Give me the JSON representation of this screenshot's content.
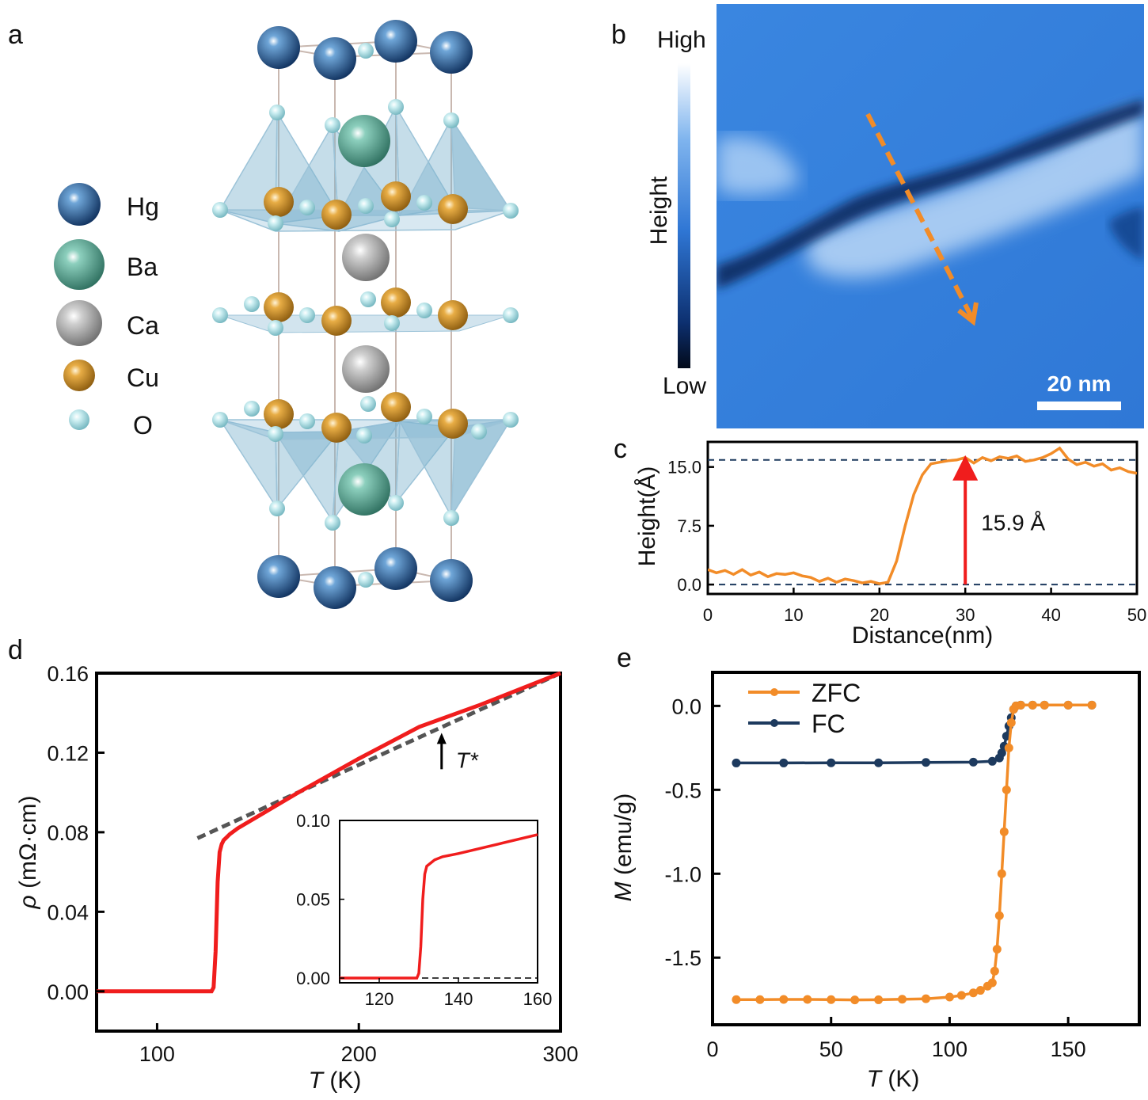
{
  "figure": {
    "panel_labels": [
      "a",
      "b",
      "c",
      "d",
      "e"
    ],
    "legend_a": {
      "items": [
        {
          "label": "Hg",
          "color": "#1f4e86"
        },
        {
          "label": "Ba",
          "color": "#4f9b86"
        },
        {
          "label": "Ca",
          "color": "#9a9a9a"
        },
        {
          "label": "Cu",
          "color": "#c88a1f"
        },
        {
          "label": "O",
          "color": "#a8d8de"
        }
      ]
    },
    "panel_b": {
      "colorbar_high": "High",
      "colorbar_low": "Low",
      "colorbar_title": "Height",
      "scalebar": "20 nm"
    },
    "colors": {
      "orange": "#f28c28",
      "red": "#f01d1d",
      "navy": "#1d3a5e",
      "dashed": "#1d3a5e"
    }
  },
  "chart_data": [
    {
      "id": "c",
      "type": "line",
      "title": "",
      "xlabel": "Distance(nm)",
      "ylabel": "Height(Å)",
      "xlim": [
        0,
        50
      ],
      "ylim": [
        -1.2,
        18.2
      ],
      "xticks": [
        "0",
        "10",
        "20",
        "30",
        "40",
        "50"
      ],
      "yticks": [
        "0.0",
        "7.5",
        "15.0"
      ],
      "x": [
        0,
        1,
        2,
        3,
        4,
        5,
        6,
        7,
        8,
        9,
        10,
        11,
        12,
        13,
        14,
        15,
        16,
        17,
        18,
        19,
        20,
        21,
        22,
        23,
        24,
        25,
        26,
        27,
        28,
        29,
        30,
        31,
        32,
        33,
        34,
        35,
        36,
        37,
        38,
        39,
        40,
        41,
        42,
        43,
        44,
        45,
        46,
        47,
        48,
        49,
        50
      ],
      "values": [
        1.9,
        1.5,
        1.8,
        1.3,
        1.9,
        1.2,
        1.6,
        1.0,
        1.4,
        1.3,
        1.5,
        1.1,
        0.9,
        0.4,
        0.8,
        0.3,
        0.7,
        0.5,
        0.2,
        0.4,
        0.1,
        0.3,
        3.0,
        7.5,
        11.5,
        14.0,
        15.4,
        15.6,
        15.8,
        15.9,
        16.2,
        15.5,
        16.2,
        15.8,
        16.3,
        16.1,
        16.4,
        15.7,
        15.9,
        16.2,
        16.7,
        17.4,
        16.0,
        15.3,
        15.6,
        15.1,
        15.4,
        14.6,
        14.9,
        14.4,
        14.2
      ],
      "reference_lines": [
        0,
        15.9
      ],
      "annotation": {
        "text": "15.9 Å",
        "x": 30,
        "from": 0,
        "to": 15.9
      }
    },
    {
      "id": "d",
      "type": "line",
      "title": "",
      "xlabel": "T (K)",
      "ylabel": "ρ (mΩ·cm)",
      "xlim": [
        70,
        300
      ],
      "ylim": [
        -0.02,
        0.16
      ],
      "xticks": [
        "100",
        "200",
        "300"
      ],
      "yticks": [
        "0.00",
        "0.04",
        "0.08",
        "0.12",
        "0.16"
      ],
      "x": [
        70,
        100,
        127,
        128,
        129,
        130,
        131,
        132,
        133,
        134,
        136,
        140,
        150,
        170,
        200,
        230,
        260,
        300
      ],
      "values": [
        0.0,
        0.0,
        0.0,
        0.002,
        0.02,
        0.055,
        0.07,
        0.074,
        0.076,
        0.077,
        0.079,
        0.082,
        0.088,
        0.1,
        0.117,
        0.133,
        0.144,
        0.16
      ],
      "fit_line": {
        "x": [
          120,
          300
        ],
        "values": [
          0.077,
          0.16
        ]
      },
      "annotation": {
        "text": "T*",
        "x": 243,
        "y": 0.13
      },
      "inset": {
        "xlim": [
          110,
          160
        ],
        "ylim": [
          -0.003,
          0.1
        ],
        "xticks": [
          "120",
          "140",
          "160"
        ],
        "yticks": [
          "0.00",
          "0.05",
          "0.10"
        ],
        "x": [
          110,
          125,
          129.5,
          130,
          130.5,
          131,
          131.5,
          132,
          133,
          134,
          136,
          140,
          150,
          160
        ],
        "values": [
          0.0,
          0.0,
          0.0,
          0.003,
          0.02,
          0.05,
          0.066,
          0.071,
          0.073,
          0.075,
          0.077,
          0.079,
          0.085,
          0.091
        ],
        "baseline": 0
      }
    },
    {
      "id": "e",
      "type": "line",
      "title": "",
      "xlabel": "T (K)",
      "ylabel": "M (emu/g)",
      "xlim": [
        0,
        180
      ],
      "ylim": [
        -1.9,
        0.2
      ],
      "xticks": [
        "0",
        "50",
        "100",
        "150"
      ],
      "yticks": [
        "0.0",
        "-0.5",
        "-1.0",
        "-1.5"
      ],
      "legend": [
        "ZFC",
        "FC"
      ],
      "series": [
        {
          "name": "ZFC",
          "x": [
            10,
            20,
            30,
            40,
            50,
            60,
            70,
            80,
            90,
            100,
            105,
            110,
            113,
            116,
            118,
            119,
            120,
            121,
            122,
            123,
            124,
            125,
            126,
            127,
            128,
            130,
            135,
            140,
            150,
            160
          ],
          "values": [
            -1.75,
            -1.75,
            -1.749,
            -1.749,
            -1.75,
            -1.752,
            -1.751,
            -1.748,
            -1.745,
            -1.735,
            -1.725,
            -1.71,
            -1.695,
            -1.67,
            -1.65,
            -1.58,
            -1.45,
            -1.25,
            -1.0,
            -0.75,
            -0.5,
            -0.25,
            -0.1,
            -0.02,
            0.0,
            0.005,
            0.005,
            0.005,
            0.005,
            0.005
          ]
        },
        {
          "name": "FC",
          "x": [
            10,
            30,
            50,
            70,
            90,
            110,
            118,
            121,
            122,
            123,
            124,
            125,
            126,
            127,
            128,
            130,
            135,
            140,
            150,
            160
          ],
          "values": [
            -0.34,
            -0.34,
            -0.339,
            -0.339,
            -0.337,
            -0.335,
            -0.33,
            -0.31,
            -0.28,
            -0.24,
            -0.18,
            -0.12,
            -0.07,
            -0.02,
            0.0,
            0.005,
            0.005,
            0.005,
            0.005,
            0.005
          ]
        }
      ]
    }
  ]
}
